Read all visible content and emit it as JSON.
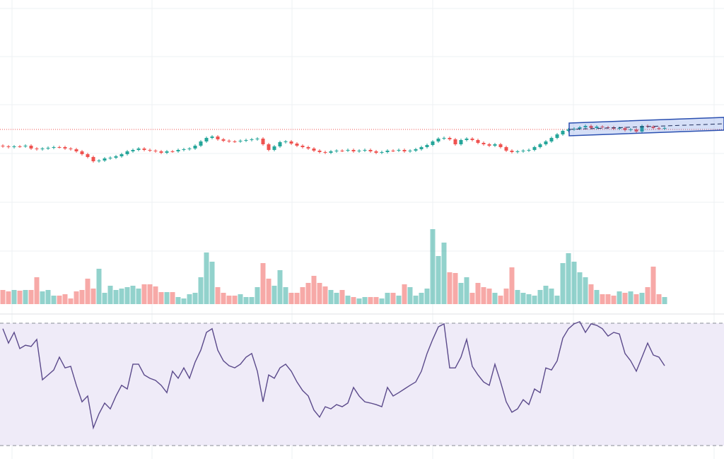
{
  "chart_data": [
    {
      "type": "candlestick",
      "up_color": "#26a69a",
      "down_color": "#ef5350",
      "ylim": [
        0,
        440
      ],
      "price_line": 257,
      "open": [
        234,
        233,
        232,
        233,
        233,
        234,
        230,
        229,
        230,
        231,
        232,
        232,
        230,
        229,
        226,
        222,
        218,
        212,
        213,
        216,
        217,
        219,
        222,
        226,
        228,
        230,
        228,
        227,
        226,
        224,
        226,
        226,
        228,
        229,
        230,
        234,
        240,
        245,
        247,
        243,
        241,
        240,
        240,
        241,
        242,
        243,
        244,
        236,
        228,
        233,
        239,
        240,
        237,
        234,
        232,
        230,
        227,
        225,
        224,
        226,
        227,
        227,
        228,
        226,
        227,
        228,
        226,
        224,
        225,
        227,
        227,
        228,
        226,
        227,
        229,
        232,
        235,
        240,
        244,
        245,
        243,
        236,
        242,
        244,
        242,
        238,
        236,
        234,
        236,
        232,
        227,
        225,
        226,
        227,
        228,
        232,
        236,
        240,
        245,
        250,
        255,
        257,
        258,
        260,
        262,
        259,
        261,
        260,
        260,
        258,
        259,
        256,
        257,
        254,
        262,
        261,
        259,
        258
      ],
      "high": [
        236,
        235,
        235,
        235,
        236,
        236,
        232,
        232,
        233,
        234,
        234,
        234,
        232,
        231,
        228,
        224,
        220,
        215,
        218,
        219,
        221,
        224,
        228,
        230,
        232,
        232,
        230,
        229,
        228,
        228,
        228,
        230,
        231,
        232,
        236,
        242,
        247,
        249,
        249,
        245,
        243,
        242,
        243,
        244,
        245,
        246,
        246,
        238,
        235,
        241,
        242,
        242,
        239,
        236,
        234,
        232,
        229,
        227,
        228,
        229,
        229,
        230,
        230,
        229,
        230,
        230,
        228,
        227,
        229,
        229,
        230,
        230,
        229,
        231,
        234,
        237,
        242,
        246,
        247,
        247,
        245,
        244,
        246,
        246,
        244,
        240,
        238,
        238,
        238,
        234,
        229,
        228,
        229,
        230,
        234,
        238,
        242,
        247,
        252,
        257,
        259,
        260,
        262,
        264,
        264,
        263,
        263,
        262,
        262,
        261,
        261,
        259,
        259,
        264,
        264,
        263,
        261,
        261
      ],
      "low": [
        231,
        230,
        230,
        231,
        231,
        228,
        227,
        227,
        228,
        229,
        230,
        228,
        227,
        224,
        220,
        216,
        210,
        210,
        211,
        214,
        215,
        217,
        220,
        224,
        226,
        226,
        225,
        224,
        222,
        222,
        224,
        224,
        226,
        227,
        228,
        232,
        238,
        243,
        241,
        239,
        238,
        238,
        238,
        239,
        240,
        241,
        234,
        226,
        226,
        231,
        237,
        235,
        232,
        230,
        228,
        225,
        223,
        222,
        222,
        224,
        225,
        225,
        224,
        224,
        225,
        224,
        222,
        222,
        223,
        225,
        225,
        224,
        224,
        225,
        227,
        230,
        233,
        238,
        242,
        241,
        234,
        234,
        240,
        240,
        236,
        234,
        232,
        232,
        230,
        225,
        223,
        223,
        224,
        225,
        226,
        230,
        234,
        238,
        243,
        248,
        253,
        255,
        256,
        258,
        257,
        257,
        258,
        258,
        256,
        256,
        254,
        254,
        252,
        252,
        259,
        257,
        256,
        256
      ],
      "close": [
        233,
        232,
        233,
        233,
        234,
        230,
        229,
        230,
        231,
        232,
        232,
        230,
        229,
        226,
        222,
        218,
        212,
        213,
        216,
        217,
        219,
        222,
        226,
        228,
        230,
        228,
        227,
        226,
        224,
        226,
        226,
        228,
        229,
        230,
        234,
        240,
        245,
        247,
        243,
        241,
        240,
        240,
        241,
        242,
        243,
        244,
        236,
        228,
        233,
        239,
        240,
        237,
        234,
        232,
        230,
        227,
        225,
        224,
        226,
        227,
        227,
        228,
        226,
        227,
        228,
        226,
        224,
        225,
        227,
        227,
        228,
        226,
        227,
        229,
        232,
        235,
        240,
        244,
        245,
        243,
        236,
        242,
        244,
        242,
        238,
        236,
        234,
        236,
        232,
        227,
        225,
        226,
        227,
        228,
        232,
        236,
        240,
        245,
        250,
        255,
        257,
        258,
        260,
        262,
        259,
        261,
        260,
        260,
        258,
        259,
        256,
        257,
        254,
        262,
        261,
        259,
        258,
        259
      ]
    },
    {
      "type": "bar",
      "ylim": [
        0,
        120
      ],
      "values": [
        20,
        18,
        20,
        19,
        20,
        20,
        38,
        18,
        20,
        12,
        12,
        14,
        8,
        18,
        20,
        36,
        22,
        50,
        16,
        26,
        20,
        22,
        24,
        26,
        22,
        28,
        28,
        25,
        17,
        17,
        17,
        10,
        8,
        14,
        16,
        38,
        73,
        60,
        24,
        16,
        12,
        12,
        14,
        10,
        10,
        24,
        58,
        36,
        26,
        48,
        24,
        16,
        16,
        24,
        30,
        40,
        30,
        25,
        20,
        16,
        20,
        12,
        10,
        8,
        10,
        10,
        10,
        8,
        16,
        16,
        12,
        28,
        24,
        12,
        16,
        22,
        106,
        68,
        87,
        45,
        44,
        30,
        38,
        16,
        30,
        24,
        22,
        16,
        12,
        22,
        52,
        20,
        16,
        14,
        12,
        20,
        26,
        22,
        12,
        58,
        72,
        60,
        45,
        38,
        28,
        20,
        14,
        14,
        12,
        18,
        16,
        18,
        14,
        16,
        24,
        53,
        14,
        10
      ]
    },
    {
      "type": "line",
      "color": "#5b4a8b",
      "band_color": "#efebf8",
      "ylim": [
        30,
        70
      ],
      "bands": [
        30,
        70
      ],
      "values": [
        68.2,
        63.5,
        67.0,
        61.7,
        62.8,
        62.4,
        64.7,
        51.5,
        53.1,
        54.7,
        58.9,
        55.4,
        55.9,
        49.7,
        44.3,
        46.2,
        35.8,
        40.4,
        43.9,
        42.0,
        46.2,
        49.7,
        48.5,
        56.6,
        56.6,
        53.1,
        52.0,
        51.3,
        49.7,
        47.3,
        54.3,
        52.0,
        55.4,
        52.0,
        57.3,
        61.2,
        67.0,
        68.2,
        61.2,
        57.7,
        56.1,
        55.4,
        56.6,
        58.9,
        60.1,
        54.3,
        44.3,
        53.1,
        52.0,
        55.4,
        56.6,
        54.3,
        50.8,
        48.0,
        46.2,
        41.6,
        39.3,
        42.7,
        42.0,
        43.4,
        42.7,
        43.9,
        49.0,
        46.2,
        44.3,
        43.9,
        43.4,
        42.7,
        49.0,
        46.2,
        47.3,
        48.5,
        49.7,
        50.8,
        54.3,
        60.1,
        64.7,
        68.8,
        69.8,
        55.4,
        55.4,
        58.9,
        64.7,
        55.9,
        53.1,
        50.8,
        49.7,
        56.6,
        50.8,
        44.3,
        40.9,
        42.0,
        45.0,
        43.4,
        48.5,
        47.3,
        55.4,
        54.7,
        57.7,
        65.1,
        68.2,
        69.8,
        70.5,
        67.0,
        69.8,
        69.3,
        68.2,
        65.8,
        67.0,
        66.5,
        60.1,
        57.7,
        54.3,
        58.9,
        63.5,
        59.6,
        58.9,
        56.1
      ]
    }
  ]
}
